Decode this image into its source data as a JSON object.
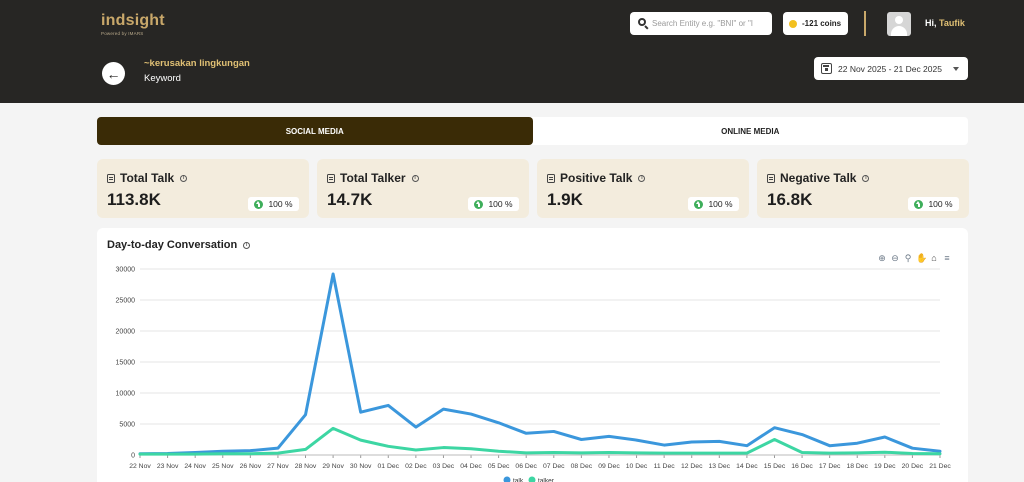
{
  "header": {
    "logo_text": "indsight",
    "logo_subtext": "Powered by IMARS",
    "search_placeholder": "Search Entity e.g. \"BNI\" or \"I",
    "coins_label": "-121 coins",
    "greeting_prefix": "Hi,",
    "user_name": "Taufik"
  },
  "page": {
    "topic_title": "~kerusakan lingkungan",
    "topic_type": "Keyword",
    "date_range": "22 Nov 2025 - 21 Dec 2025"
  },
  "tabs": [
    {
      "label": "SOCIAL MEDIA",
      "active": true
    },
    {
      "label": "ONLINE MEDIA",
      "active": false
    }
  ],
  "stats": [
    {
      "label": "Total Talk",
      "value": "113.8K",
      "change": "100 %"
    },
    {
      "label": "Total Talker",
      "value": "14.7K",
      "change": "100 %"
    },
    {
      "label": "Positive Talk",
      "value": "1.9K",
      "change": "100 %"
    },
    {
      "label": "Negative Talk",
      "value": "16.8K",
      "change": "100 %"
    }
  ],
  "chart": {
    "title": "Day-to-day Conversation"
  },
  "chart_data": {
    "type": "line",
    "title": "Day-to-day Conversation",
    "categories": [
      "22 Nov",
      "23 Nov",
      "24 Nov",
      "25 Nov",
      "26 Nov",
      "27 Nov",
      "28 Nov",
      "29 Nov",
      "30 Nov",
      "01 Dec",
      "02 Dec",
      "03 Dec",
      "04 Dec",
      "05 Dec",
      "06 Dec",
      "07 Dec",
      "08 Dec",
      "09 Dec",
      "10 Dec",
      "11 Dec",
      "12 Dec",
      "13 Dec",
      "14 Dec",
      "15 Dec",
      "16 Dec",
      "17 Dec",
      "18 Dec",
      "19 Dec",
      "20 Dec",
      "21 Dec"
    ],
    "yticks": [
      0,
      5000,
      10000,
      15000,
      20000,
      25000,
      30000
    ],
    "ylim": [
      0,
      30000
    ],
    "grid": true,
    "legend_position": "bottom",
    "series": [
      {
        "name": "talk",
        "color": "#3b97dc",
        "values": [
          200,
          250,
          400,
          600,
          700,
          1100,
          6500,
          29200,
          6900,
          8000,
          4500,
          7400,
          6600,
          5200,
          3500,
          3800,
          2500,
          3000,
          2400,
          1600,
          2100,
          2200,
          1500,
          4400,
          3300,
          1500,
          1900,
          2900,
          1100,
          600
        ]
      },
      {
        "name": "talker",
        "color": "#3dd6a3",
        "values": [
          150,
          150,
          150,
          200,
          200,
          300,
          900,
          4300,
          2400,
          1400,
          800,
          1200,
          1000,
          600,
          350,
          400,
          350,
          400,
          350,
          300,
          300,
          300,
          300,
          2500,
          400,
          300,
          350,
          450,
          250,
          200
        ]
      }
    ]
  }
}
